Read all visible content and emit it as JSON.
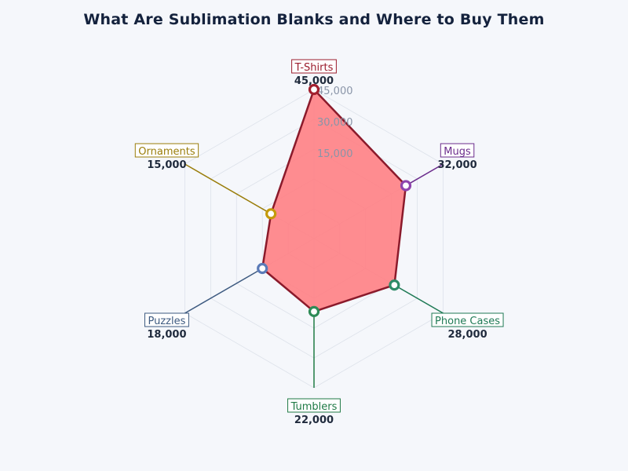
{
  "chart_data": {
    "type": "radar",
    "title": "What Are Sublimation Blanks and Where to Buy Them",
    "rmax": 45000,
    "ring_labels": [
      "15,000",
      "30,000",
      "45,000"
    ],
    "categories": [
      "T-Shirts",
      "Mugs",
      "Phone Cases",
      "Tumblers",
      "Puzzles",
      "Ornaments"
    ],
    "values": [
      45000,
      32000,
      28000,
      22000,
      18000,
      15000
    ],
    "value_labels": [
      "45,000",
      "32,000",
      "28,000",
      "22,000",
      "18,000",
      "15,000"
    ],
    "category_colors": [
      "#9b1c2c",
      "#6b2c8c",
      "#1f7a55",
      "#1f7a45",
      "#3d5a80",
      "#9a7d0a"
    ],
    "marker_colors": [
      "#a3202f",
      "#8e44ad",
      "#2e8b67",
      "#2e8b57",
      "#5b7bb8",
      "#c49a0a"
    ],
    "fill_color": "#ff7f84",
    "stroke_color": "#8b1a2b"
  }
}
